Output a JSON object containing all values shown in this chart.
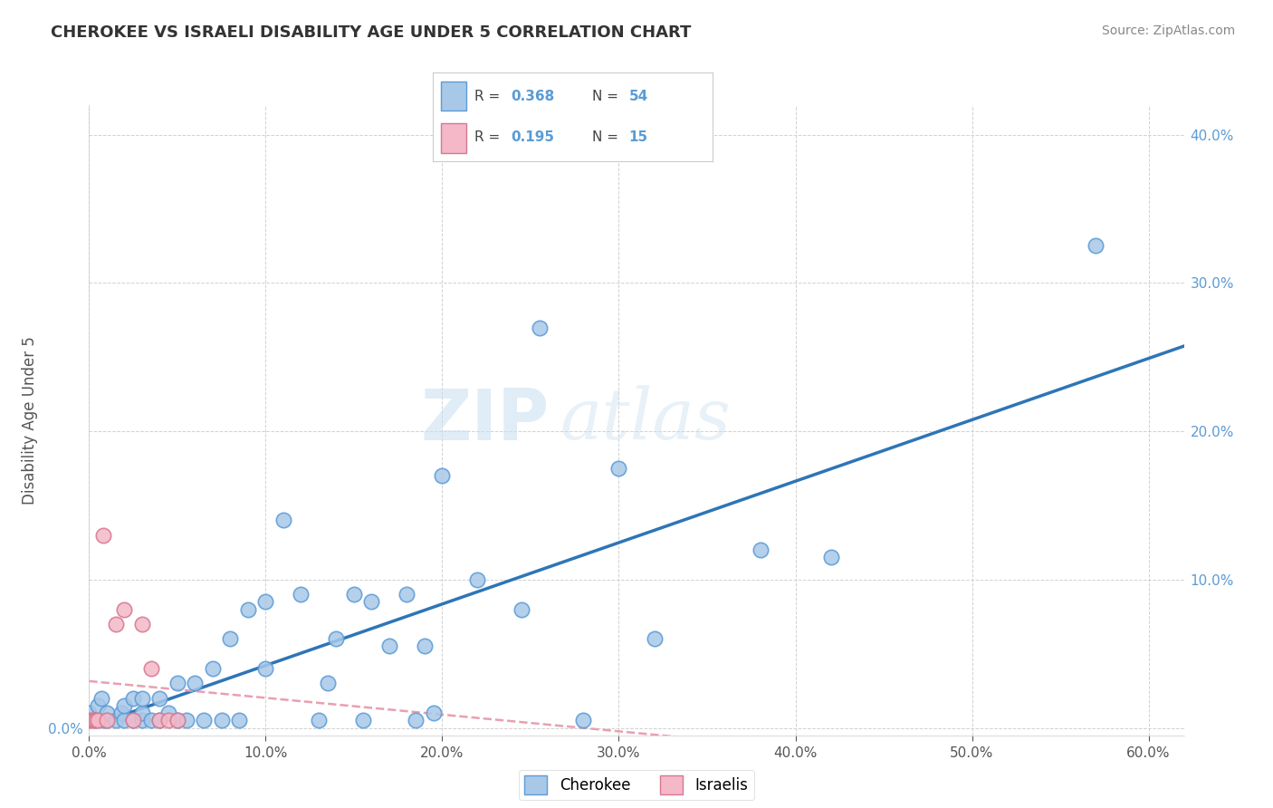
{
  "title": "CHEROKEE VS ISRAELI DISABILITY AGE UNDER 5 CORRELATION CHART",
  "source": "Source: ZipAtlas.com",
  "ylabel": "Disability Age Under 5",
  "xlim": [
    0.0,
    0.62
  ],
  "ylim": [
    -0.005,
    0.42
  ],
  "xticks": [
    0.0,
    0.1,
    0.2,
    0.3,
    0.4,
    0.5,
    0.6
  ],
  "yticks": [
    0.0,
    0.1,
    0.2,
    0.3,
    0.4
  ],
  "xtick_labels": [
    "0.0%",
    "10.0%",
    "20.0%",
    "30.0%",
    "40.0%",
    "50.0%",
    "60.0%"
  ],
  "ytick_labels_left": [
    "0.0%",
    "",
    "",
    "",
    ""
  ],
  "ytick_labels_right": [
    "",
    "10.0%",
    "20.0%",
    "30.0%",
    "40.0%"
  ],
  "cherokee_color": "#a8c8e8",
  "cherokee_edge": "#5b9bd5",
  "israeli_color": "#f4b8c8",
  "israeli_edge": "#d47890",
  "trendline_cherokee_color": "#2e75b6",
  "trendline_israeli_color": "#e8a0b0",
  "R_cherokee": 0.368,
  "N_cherokee": 54,
  "R_israeli": 0.195,
  "N_israeli": 15,
  "cherokee_x": [
    0.0,
    0.005,
    0.007,
    0.008,
    0.01,
    0.01,
    0.015,
    0.018,
    0.02,
    0.02,
    0.025,
    0.025,
    0.03,
    0.03,
    0.03,
    0.035,
    0.04,
    0.04,
    0.045,
    0.05,
    0.05,
    0.055,
    0.06,
    0.065,
    0.07,
    0.075,
    0.08,
    0.085,
    0.09,
    0.1,
    0.1,
    0.11,
    0.12,
    0.13,
    0.135,
    0.14,
    0.15,
    0.155,
    0.16,
    0.17,
    0.18,
    0.185,
    0.19,
    0.195,
    0.2,
    0.22,
    0.245,
    0.255,
    0.28,
    0.3,
    0.32,
    0.38,
    0.42,
    0.57
  ],
  "cherokee_y": [
    0.01,
    0.015,
    0.02,
    0.005,
    0.005,
    0.01,
    0.005,
    0.01,
    0.005,
    0.015,
    0.005,
    0.02,
    0.005,
    0.01,
    0.02,
    0.005,
    0.005,
    0.02,
    0.01,
    0.005,
    0.03,
    0.005,
    0.03,
    0.005,
    0.04,
    0.005,
    0.06,
    0.005,
    0.08,
    0.04,
    0.085,
    0.14,
    0.09,
    0.005,
    0.03,
    0.06,
    0.09,
    0.005,
    0.085,
    0.055,
    0.09,
    0.005,
    0.055,
    0.01,
    0.17,
    0.1,
    0.08,
    0.27,
    0.005,
    0.175,
    0.06,
    0.12,
    0.115,
    0.325
  ],
  "israeli_x": [
    0.0,
    0.002,
    0.003,
    0.004,
    0.005,
    0.008,
    0.01,
    0.015,
    0.02,
    0.025,
    0.03,
    0.035,
    0.04,
    0.045,
    0.05
  ],
  "israeli_y": [
    0.005,
    0.005,
    0.005,
    0.005,
    0.005,
    0.13,
    0.005,
    0.07,
    0.08,
    0.005,
    0.07,
    0.04,
    0.005,
    0.005,
    0.005
  ]
}
